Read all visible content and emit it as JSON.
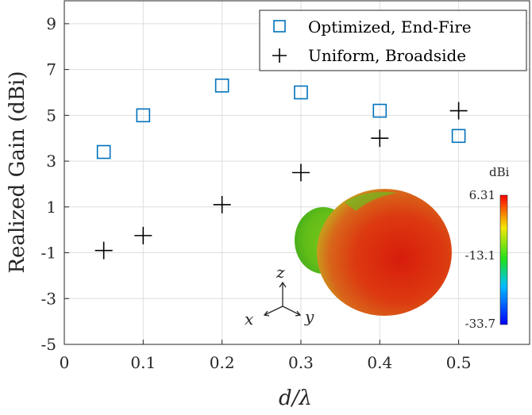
{
  "chart_data": {
    "type": "scatter",
    "title": "",
    "xlabel": "d/λ",
    "ylabel": "Realized Gain (dBi)",
    "xlim": [
      0,
      0.59
    ],
    "ylim": [
      -5,
      10
    ],
    "x_ticks": [
      "0",
      "0.1",
      "0.2",
      "0.3",
      "0.4",
      "0.5"
    ],
    "y_ticks": [
      "-5",
      "-3",
      "-1",
      "1",
      "3",
      "5",
      "7",
      "9"
    ],
    "grid": true,
    "legend_position": "top-right",
    "series": [
      {
        "name": "Optimized, End-Fire",
        "marker": "square",
        "color": "#0072BD",
        "x": [
          0.05,
          0.1,
          0.2,
          0.3,
          0.4,
          0.5
        ],
        "y": [
          3.4,
          5.0,
          6.3,
          6.0,
          5.2,
          4.1
        ]
      },
      {
        "name": "Uniform, Broadside",
        "marker": "plus",
        "color": "#000000",
        "x": [
          0.05,
          0.1,
          0.2,
          0.3,
          0.4,
          0.5
        ],
        "y": [
          -0.9,
          -0.25,
          1.1,
          2.5,
          4.0,
          5.2
        ]
      }
    ],
    "inset": {
      "colorbar_title": "dBi",
      "colorbar_ticks": [
        "6.31",
        "-13.1",
        "-33.7"
      ],
      "axes_labels": {
        "x": "x",
        "y": "y",
        "z": "z"
      }
    }
  }
}
